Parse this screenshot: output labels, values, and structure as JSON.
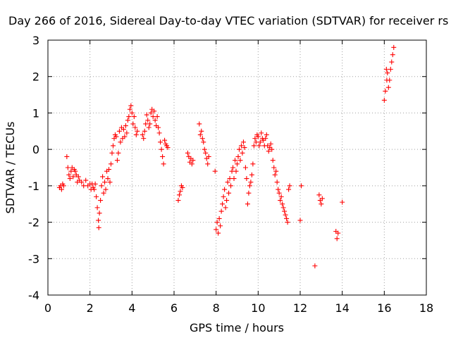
{
  "chart_data": {
    "type": "scatter",
    "title": "Day 266 of 2016, Sidereal Day-to-day VTEC variation (SDTVAR) for receiver rs",
    "xlabel": "GPS time / hours",
    "ylabel": "SDTVAR / TECUs",
    "xlim": [
      0,
      18
    ],
    "ylim": [
      -4,
      3
    ],
    "xticks": [
      0,
      2,
      4,
      6,
      8,
      10,
      12,
      14,
      16,
      18
    ],
    "yticks": [
      -4,
      -3,
      -2,
      -1,
      0,
      1,
      2,
      3
    ],
    "xtick_labels": [
      "0",
      "2",
      "4",
      "6",
      "8",
      "10",
      "12",
      "14",
      "16",
      "18"
    ],
    "ytick_labels": [
      "-4",
      "-3",
      "-2",
      "-1",
      "0",
      "1",
      "2",
      "3"
    ],
    "grid": true,
    "marker": "+",
    "series": [
      {
        "name": "SDTVAR",
        "color": "#ff0000",
        "points": [
          [
            0.55,
            -1.05
          ],
          [
            0.6,
            -1.0
          ],
          [
            0.65,
            -1.1
          ],
          [
            0.7,
            -0.95
          ],
          [
            0.75,
            -1.0
          ],
          [
            0.9,
            -0.2
          ],
          [
            0.95,
            -0.5
          ],
          [
            1.0,
            -0.7
          ],
          [
            1.05,
            -0.8
          ],
          [
            1.1,
            -0.6
          ],
          [
            1.15,
            -0.5
          ],
          [
            1.2,
            -0.75
          ],
          [
            1.25,
            -0.55
          ],
          [
            1.3,
            -0.6
          ],
          [
            1.35,
            -0.7
          ],
          [
            1.4,
            -0.9
          ],
          [
            1.45,
            -0.75
          ],
          [
            1.5,
            -0.85
          ],
          [
            1.6,
            -0.9
          ],
          [
            1.7,
            -1.0
          ],
          [
            1.8,
            -0.85
          ],
          [
            1.9,
            -1.0
          ],
          [
            2.0,
            -0.95
          ],
          [
            2.05,
            -1.1
          ],
          [
            2.1,
            -0.95
          ],
          [
            2.15,
            -1.05
          ],
          [
            2.2,
            -1.1
          ],
          [
            2.25,
            -0.95
          ],
          [
            2.3,
            -1.3
          ],
          [
            2.35,
            -1.6
          ],
          [
            2.4,
            -1.95
          ],
          [
            2.42,
            -2.15
          ],
          [
            2.45,
            -1.75
          ],
          [
            2.5,
            -1.4
          ],
          [
            2.55,
            -1.0
          ],
          [
            2.6,
            -0.75
          ],
          [
            2.65,
            -1.2
          ],
          [
            2.7,
            -0.9
          ],
          [
            2.75,
            -1.1
          ],
          [
            2.8,
            -0.6
          ],
          [
            2.85,
            -0.8
          ],
          [
            2.9,
            -0.55
          ],
          [
            2.95,
            -0.9
          ],
          [
            3.0,
            -0.4
          ],
          [
            3.05,
            -0.1
          ],
          [
            3.1,
            0.1
          ],
          [
            3.15,
            0.3
          ],
          [
            3.2,
            0.4
          ],
          [
            3.25,
            0.35
          ],
          [
            3.3,
            -0.3
          ],
          [
            3.35,
            -0.1
          ],
          [
            3.4,
            0.5
          ],
          [
            3.45,
            0.2
          ],
          [
            3.5,
            0.6
          ],
          [
            3.55,
            0.3
          ],
          [
            3.6,
            0.55
          ],
          [
            3.65,
            0.35
          ],
          [
            3.7,
            0.65
          ],
          [
            3.75,
            0.45
          ],
          [
            3.8,
            0.8
          ],
          [
            3.85,
            0.9
          ],
          [
            3.9,
            1.1
          ],
          [
            3.95,
            1.2
          ],
          [
            4.0,
            1.0
          ],
          [
            4.05,
            0.7
          ],
          [
            4.1,
            0.9
          ],
          [
            4.15,
            0.6
          ],
          [
            4.2,
            0.4
          ],
          [
            4.25,
            0.5
          ],
          [
            4.5,
            0.4
          ],
          [
            4.55,
            0.3
          ],
          [
            4.6,
            0.5
          ],
          [
            4.65,
            0.7
          ],
          [
            4.7,
            0.95
          ],
          [
            4.75,
            0.8
          ],
          [
            4.8,
            0.6
          ],
          [
            4.85,
            0.7
          ],
          [
            4.9,
            1.0
          ],
          [
            4.95,
            1.1
          ],
          [
            5.0,
            0.9
          ],
          [
            5.05,
            1.05
          ],
          [
            5.1,
            0.8
          ],
          [
            5.15,
            0.65
          ],
          [
            5.2,
            0.9
          ],
          [
            5.25,
            0.6
          ],
          [
            5.3,
            0.45
          ],
          [
            5.35,
            0.2
          ],
          [
            5.4,
            0.0
          ],
          [
            5.45,
            -0.2
          ],
          [
            5.5,
            -0.4
          ],
          [
            5.55,
            0.25
          ],
          [
            5.6,
            0.15
          ],
          [
            5.65,
            0.1
          ],
          [
            5.7,
            0.05
          ],
          [
            6.2,
            -1.4
          ],
          [
            6.25,
            -1.25
          ],
          [
            6.3,
            -1.15
          ],
          [
            6.35,
            -1.0
          ],
          [
            6.4,
            -1.05
          ],
          [
            6.65,
            -0.1
          ],
          [
            6.7,
            -0.2
          ],
          [
            6.75,
            -0.35
          ],
          [
            6.8,
            -0.25
          ],
          [
            6.85,
            -0.4
          ],
          [
            6.9,
            -0.3
          ],
          [
            7.2,
            0.7
          ],
          [
            7.25,
            0.4
          ],
          [
            7.3,
            0.5
          ],
          [
            7.35,
            0.3
          ],
          [
            7.4,
            0.2
          ],
          [
            7.45,
            0.0
          ],
          [
            7.5,
            -0.1
          ],
          [
            7.55,
            -0.25
          ],
          [
            7.6,
            -0.4
          ],
          [
            7.65,
            -0.2
          ],
          [
            7.95,
            -0.6
          ],
          [
            8.0,
            -2.2
          ],
          [
            8.05,
            -2.0
          ],
          [
            8.1,
            -2.3
          ],
          [
            8.15,
            -1.9
          ],
          [
            8.2,
            -2.1
          ],
          [
            8.25,
            -1.7
          ],
          [
            8.3,
            -1.5
          ],
          [
            8.35,
            -1.3
          ],
          [
            8.4,
            -1.1
          ],
          [
            8.45,
            -1.6
          ],
          [
            8.5,
            -1.4
          ],
          [
            8.55,
            -0.9
          ],
          [
            8.6,
            -1.2
          ],
          [
            8.65,
            -0.8
          ],
          [
            8.7,
            -1.0
          ],
          [
            8.75,
            -0.6
          ],
          [
            8.8,
            -0.5
          ],
          [
            8.85,
            -0.8
          ],
          [
            8.9,
            -0.3
          ],
          [
            8.95,
            -0.6
          ],
          [
            9.0,
            -0.4
          ],
          [
            9.05,
            -0.2
          ],
          [
            9.1,
            0.0
          ],
          [
            9.15,
            -0.3
          ],
          [
            9.2,
            0.1
          ],
          [
            9.25,
            -0.1
          ],
          [
            9.3,
            0.2
          ],
          [
            9.35,
            0.05
          ],
          [
            9.4,
            -0.5
          ],
          [
            9.45,
            -0.8
          ],
          [
            9.5,
            -1.5
          ],
          [
            9.55,
            -1.2
          ],
          [
            9.6,
            -1.0
          ],
          [
            9.65,
            -0.9
          ],
          [
            9.7,
            -0.7
          ],
          [
            9.75,
            -0.4
          ],
          [
            9.8,
            0.1
          ],
          [
            9.85,
            0.3
          ],
          [
            9.9,
            0.2
          ],
          [
            9.95,
            0.4
          ],
          [
            10.0,
            0.35
          ],
          [
            10.05,
            0.1
          ],
          [
            10.1,
            0.2
          ],
          [
            10.15,
            0.45
          ],
          [
            10.2,
            0.3
          ],
          [
            10.25,
            0.25
          ],
          [
            10.3,
            0.1
          ],
          [
            10.35,
            0.3
          ],
          [
            10.4,
            0.4
          ],
          [
            10.45,
            0.1
          ],
          [
            10.5,
            -0.05
          ],
          [
            10.55,
            0.05
          ],
          [
            10.6,
            0.15
          ],
          [
            10.65,
            0.0
          ],
          [
            10.7,
            -0.3
          ],
          [
            10.75,
            -0.5
          ],
          [
            10.8,
            -0.7
          ],
          [
            10.85,
            -0.6
          ],
          [
            10.9,
            -0.9
          ],
          [
            10.95,
            -1.1
          ],
          [
            11.0,
            -1.2
          ],
          [
            11.05,
            -1.4
          ],
          [
            11.1,
            -1.3
          ],
          [
            11.15,
            -1.5
          ],
          [
            11.2,
            -1.6
          ],
          [
            11.25,
            -1.7
          ],
          [
            11.3,
            -1.8
          ],
          [
            11.35,
            -1.9
          ],
          [
            11.4,
            -2.0
          ],
          [
            11.45,
            -1.1
          ],
          [
            11.5,
            -1.0
          ],
          [
            12.0,
            -1.95
          ],
          [
            12.05,
            -1.0
          ],
          [
            12.7,
            -3.2
          ],
          [
            12.9,
            -1.25
          ],
          [
            12.95,
            -1.4
          ],
          [
            13.0,
            -1.5
          ],
          [
            13.05,
            -1.35
          ],
          [
            13.7,
            -2.25
          ],
          [
            13.75,
            -2.45
          ],
          [
            13.8,
            -2.3
          ],
          [
            14.0,
            -1.45
          ],
          [
            16.0,
            1.35
          ],
          [
            16.05,
            1.6
          ],
          [
            16.1,
            2.2
          ],
          [
            16.12,
            1.9
          ],
          [
            16.15,
            2.1
          ],
          [
            16.2,
            1.7
          ],
          [
            16.25,
            1.9
          ],
          [
            16.3,
            2.2
          ],
          [
            16.35,
            2.4
          ],
          [
            16.4,
            2.6
          ],
          [
            16.45,
            2.8
          ]
        ]
      }
    ]
  }
}
